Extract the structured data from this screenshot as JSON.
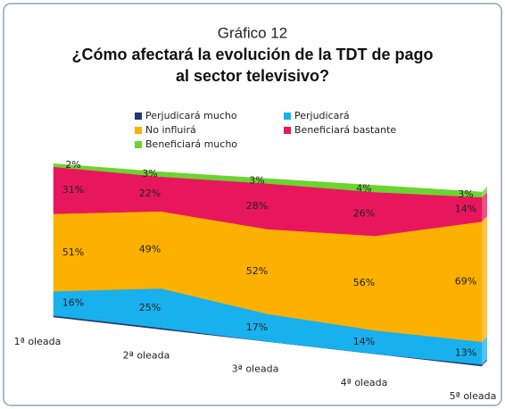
{
  "chart_data": {
    "type": "area3d",
    "title": "Gráfico 12",
    "subtitle": [
      "¿Cómo afectará la evolución de la TDT de pago",
      "al sector televisivo?"
    ],
    "categories": [
      "1ª oleada",
      "2ª oleada",
      "3ª oleada",
      "4ª oleada",
      "5ª oleada"
    ],
    "ylim": [
      0,
      100
    ],
    "series": [
      {
        "name": "Perjudicará mucho",
        "color": "#1f3a6e",
        "values": [
          1,
          1,
          0,
          0,
          1
        ]
      },
      {
        "name": "Perjudicará",
        "color": "#19b0ee",
        "values": [
          16,
          25,
          17,
          14,
          13
        ],
        "value_labels": [
          "16%",
          "25%",
          "17%",
          "14%",
          "13%"
        ]
      },
      {
        "name": "No influirá",
        "color": "#fcb000",
        "values": [
          51,
          49,
          52,
          56,
          69
        ],
        "value_labels": [
          "51%",
          "49%",
          "52%",
          "56%",
          "69%"
        ]
      },
      {
        "name": "Beneficiará bastante",
        "color": "#e8175d",
        "values": [
          31,
          22,
          28,
          26,
          14
        ],
        "value_labels": [
          "31%",
          "22%",
          "28%",
          "26%",
          "14%"
        ]
      },
      {
        "name": "Beneficiará mucho",
        "color": "#6bd430",
        "values": [
          2,
          3,
          3,
          4,
          3
        ],
        "value_labels": [
          "2%",
          "3%",
          "3%",
          "4%",
          "3%"
        ]
      }
    ]
  }
}
